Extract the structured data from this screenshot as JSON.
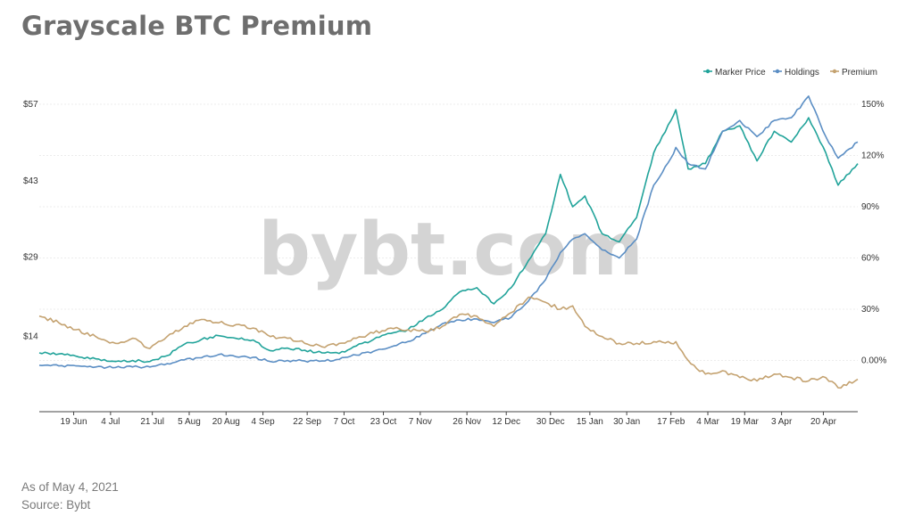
{
  "header": {
    "title": "Grayscale BTC Premium"
  },
  "footer": {
    "as_of": "As of May 4, 2021",
    "source": "Source: Bybt"
  },
  "watermark": "bybt.com",
  "chart_data": {
    "type": "line",
    "legend_position": "top-right",
    "grid": true,
    "x_range": [
      "2020-06-05",
      "2021-05-04"
    ],
    "x_ticks": [
      {
        "label": "19 Jun",
        "date": "2020-06-19"
      },
      {
        "label": "4 Jul",
        "date": "2020-07-04"
      },
      {
        "label": "21 Jul",
        "date": "2020-07-21"
      },
      {
        "label": "5 Aug",
        "date": "2020-08-05"
      },
      {
        "label": "20 Aug",
        "date": "2020-08-20"
      },
      {
        "label": "4 Sep",
        "date": "2020-09-04"
      },
      {
        "label": "22 Sep",
        "date": "2020-09-22"
      },
      {
        "label": "7 Oct",
        "date": "2020-10-07"
      },
      {
        "label": "23 Oct",
        "date": "2020-10-23"
      },
      {
        "label": "7 Nov",
        "date": "2020-11-07"
      },
      {
        "label": "26 Nov",
        "date": "2020-11-26"
      },
      {
        "label": "12 Dec",
        "date": "2020-12-12"
      },
      {
        "label": "30 Dec",
        "date": "2020-12-30"
      },
      {
        "label": "15 Jan",
        "date": "2021-01-15"
      },
      {
        "label": "30 Jan",
        "date": "2021-01-30"
      },
      {
        "label": "17 Feb",
        "date": "2021-02-17"
      },
      {
        "label": "4 Mar",
        "date": "2021-03-04"
      },
      {
        "label": "19 Mar",
        "date": "2021-03-19"
      },
      {
        "label": "3 Apr",
        "date": "2021-04-03"
      },
      {
        "label": "20 Apr",
        "date": "2021-04-20"
      }
    ],
    "y_left": {
      "ticks": [
        "$14",
        "$29",
        "$43",
        "$57"
      ],
      "values": [
        14,
        28.67,
        42.83,
        57
      ],
      "range": [
        0,
        57
      ]
    },
    "y_right": {
      "ticks": [
        "0.00%",
        "30%",
        "60%",
        "90%",
        "120%",
        "150%"
      ],
      "values": [
        0,
        30,
        60,
        90,
        120,
        150
      ],
      "range": [
        -30,
        150
      ]
    },
    "series": [
      {
        "name": "Marker Price",
        "axis": "left",
        "color": "#21a39a",
        "points": [
          [
            "2020-06-05",
            10.9
          ],
          [
            "2020-06-13",
            10.7
          ],
          [
            "2020-06-20",
            10.3
          ],
          [
            "2020-06-28",
            9.8
          ],
          [
            "2020-07-06",
            9.3
          ],
          [
            "2020-07-13",
            9.5
          ],
          [
            "2020-07-20",
            9.3
          ],
          [
            "2020-07-27",
            10.4
          ],
          [
            "2020-08-03",
            12.5
          ],
          [
            "2020-08-10",
            13.4
          ],
          [
            "2020-08-17",
            14.1
          ],
          [
            "2020-08-24",
            13.6
          ],
          [
            "2020-08-31",
            13.3
          ],
          [
            "2020-09-07",
            11.3
          ],
          [
            "2020-09-14",
            11.8
          ],
          [
            "2020-09-21",
            11.4
          ],
          [
            "2020-09-28",
            10.9
          ],
          [
            "2020-10-05",
            10.8
          ],
          [
            "2020-10-12",
            12.2
          ],
          [
            "2020-10-19",
            13.4
          ],
          [
            "2020-10-26",
            14.5
          ],
          [
            "2020-11-02",
            15.2
          ],
          [
            "2020-11-09",
            17.3
          ],
          [
            "2020-11-16",
            19.0
          ],
          [
            "2020-11-23",
            22.2
          ],
          [
            "2020-11-30",
            23.0
          ],
          [
            "2020-12-07",
            20.0
          ],
          [
            "2020-12-14",
            23.0
          ],
          [
            "2020-12-21",
            28.0
          ],
          [
            "2020-12-28",
            33.0
          ],
          [
            "2021-01-03",
            44.0
          ],
          [
            "2021-01-08",
            38.0
          ],
          [
            "2021-01-13",
            40.0
          ],
          [
            "2021-01-20",
            33.0
          ],
          [
            "2021-01-27",
            31.5
          ],
          [
            "2021-02-03",
            36.0
          ],
          [
            "2021-02-10",
            48.0
          ],
          [
            "2021-02-17",
            54.0
          ],
          [
            "2021-02-19",
            56.0
          ],
          [
            "2021-02-24",
            45.0
          ],
          [
            "2021-03-03",
            46.0
          ],
          [
            "2021-03-10",
            52.0
          ],
          [
            "2021-03-17",
            53.0
          ],
          [
            "2021-03-24",
            46.5
          ],
          [
            "2021-03-31",
            52.0
          ],
          [
            "2021-04-07",
            50.0
          ],
          [
            "2021-04-14",
            54.5
          ],
          [
            "2021-04-21",
            48.0
          ],
          [
            "2021-04-26",
            42.0
          ],
          [
            "2021-05-04",
            46.0
          ]
        ]
      },
      {
        "name": "Holdings",
        "axis": "left",
        "color": "#5b8ec4",
        "points": [
          [
            "2020-06-05",
            8.6
          ],
          [
            "2020-06-13",
            8.5
          ],
          [
            "2020-06-20",
            8.5
          ],
          [
            "2020-06-28",
            8.3
          ],
          [
            "2020-07-06",
            8.2
          ],
          [
            "2020-07-13",
            8.3
          ],
          [
            "2020-07-20",
            8.3
          ],
          [
            "2020-07-27",
            8.9
          ],
          [
            "2020-08-03",
            9.6
          ],
          [
            "2020-08-10",
            10.0
          ],
          [
            "2020-08-17",
            10.6
          ],
          [
            "2020-08-24",
            10.2
          ],
          [
            "2020-08-31",
            10.1
          ],
          [
            "2020-09-07",
            9.3
          ],
          [
            "2020-09-14",
            9.5
          ],
          [
            "2020-09-21",
            9.4
          ],
          [
            "2020-09-28",
            9.4
          ],
          [
            "2020-10-05",
            9.7
          ],
          [
            "2020-10-12",
            10.5
          ],
          [
            "2020-10-19",
            11.2
          ],
          [
            "2020-10-26",
            12.0
          ],
          [
            "2020-11-02",
            13.0
          ],
          [
            "2020-11-09",
            14.5
          ],
          [
            "2020-11-16",
            16.3
          ],
          [
            "2020-11-23",
            17.0
          ],
          [
            "2020-11-30",
            17.2
          ],
          [
            "2020-12-07",
            16.5
          ],
          [
            "2020-12-14",
            17.5
          ],
          [
            "2020-12-21",
            20.5
          ],
          [
            "2020-12-28",
            24.5
          ],
          [
            "2021-01-03",
            29.5
          ],
          [
            "2021-01-08",
            32.0
          ],
          [
            "2021-01-13",
            33.0
          ],
          [
            "2021-01-20",
            30.0
          ],
          [
            "2021-01-27",
            28.5
          ],
          [
            "2021-02-03",
            32.0
          ],
          [
            "2021-02-10",
            42.0
          ],
          [
            "2021-02-17",
            47.0
          ],
          [
            "2021-02-19",
            49.0
          ],
          [
            "2021-02-24",
            46.0
          ],
          [
            "2021-03-03",
            45.0
          ],
          [
            "2021-03-10",
            52.0
          ],
          [
            "2021-03-17",
            54.0
          ],
          [
            "2021-03-24",
            51.0
          ],
          [
            "2021-03-31",
            54.0
          ],
          [
            "2021-04-07",
            54.5
          ],
          [
            "2021-04-14",
            58.5
          ],
          [
            "2021-04-21",
            51.0
          ],
          [
            "2021-04-26",
            47.0
          ],
          [
            "2021-05-04",
            50.0
          ]
        ]
      },
      {
        "name": "Premium",
        "axis": "right",
        "color": "#c4a270",
        "points": [
          [
            "2020-06-05",
            26
          ],
          [
            "2020-06-13",
            22
          ],
          [
            "2020-06-20",
            18
          ],
          [
            "2020-06-28",
            14
          ],
          [
            "2020-07-06",
            10
          ],
          [
            "2020-07-13",
            13
          ],
          [
            "2020-07-20",
            7
          ],
          [
            "2020-07-27",
            14
          ],
          [
            "2020-08-03",
            20
          ],
          [
            "2020-08-10",
            24
          ],
          [
            "2020-08-17",
            22
          ],
          [
            "2020-08-24",
            21
          ],
          [
            "2020-08-31",
            19
          ],
          [
            "2020-09-07",
            14
          ],
          [
            "2020-09-14",
            13
          ],
          [
            "2020-09-21",
            10
          ],
          [
            "2020-09-28",
            8
          ],
          [
            "2020-10-05",
            10
          ],
          [
            "2020-10-12",
            13
          ],
          [
            "2020-10-19",
            16
          ],
          [
            "2020-10-26",
            19
          ],
          [
            "2020-11-02",
            18
          ],
          [
            "2020-11-09",
            17
          ],
          [
            "2020-11-16",
            20
          ],
          [
            "2020-11-23",
            27
          ],
          [
            "2020-11-30",
            26
          ],
          [
            "2020-12-07",
            20
          ],
          [
            "2020-12-14",
            28
          ],
          [
            "2020-12-21",
            37
          ],
          [
            "2020-12-28",
            34
          ],
          [
            "2021-01-03",
            30
          ],
          [
            "2021-01-08",
            32
          ],
          [
            "2021-01-13",
            20
          ],
          [
            "2021-01-20",
            14
          ],
          [
            "2021-01-27",
            10
          ],
          [
            "2021-02-03",
            10
          ],
          [
            "2021-02-10",
            11
          ],
          [
            "2021-02-17",
            10
          ],
          [
            "2021-02-19",
            11
          ],
          [
            "2021-02-24",
            0
          ],
          [
            "2021-03-03",
            -8
          ],
          [
            "2021-03-10",
            -6
          ],
          [
            "2021-03-17",
            -10
          ],
          [
            "2021-03-24",
            -12
          ],
          [
            "2021-03-31",
            -8
          ],
          [
            "2021-04-07",
            -10
          ],
          [
            "2021-04-14",
            -12
          ],
          [
            "2021-04-21",
            -10
          ],
          [
            "2021-04-26",
            -16
          ],
          [
            "2021-05-04",
            -11
          ]
        ]
      }
    ]
  }
}
